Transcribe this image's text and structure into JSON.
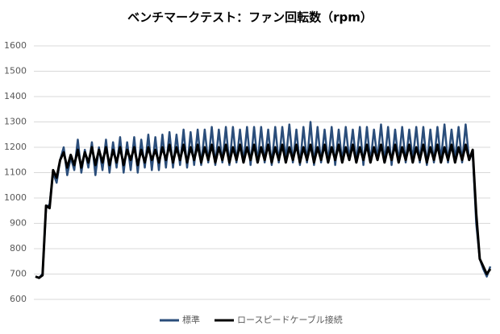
{
  "chart_data": {
    "type": "line",
    "title": "ベンチマークテスト：ファン回転数（rpm）",
    "categories": [
      null,
      null,
      null,
      null,
      null,
      null,
      null,
      null,
      null,
      null,
      null,
      null,
      null,
      null,
      null,
      null,
      null,
      null,
      null,
      null,
      null,
      null,
      null,
      null,
      null,
      null,
      null,
      null,
      null,
      null,
      null,
      null,
      null,
      null,
      null,
      null,
      null,
      null,
      null,
      null,
      null,
      null,
      null,
      null,
      null,
      null,
      null,
      null,
      null,
      null,
      null,
      null,
      null,
      null,
      null,
      null,
      null,
      null,
      null,
      null,
      null,
      null,
      null,
      null,
      null,
      null,
      null,
      null,
      null,
      null,
      null,
      null,
      null,
      null,
      null,
      null,
      null,
      null,
      null,
      null,
      null,
      null,
      null,
      null,
      null,
      null,
      null,
      null,
      null,
      null,
      null,
      null,
      null,
      null,
      null,
      null,
      null,
      null,
      null,
      null,
      null,
      null,
      null,
      null,
      null,
      null,
      null,
      null,
      null,
      null,
      null,
      null,
      null,
      null,
      null,
      null,
      null,
      null,
      null,
      null,
      null,
      null,
      null,
      null,
      null,
      null,
      null,
      null,
      null,
      null
    ],
    "series": [
      {
        "name": "標準",
        "color": "#2a4d7a",
        "values": [
          690,
          685,
          700,
          960,
          975,
          1100,
          1060,
          1150,
          1200,
          1090,
          1160,
          1110,
          1230,
          1100,
          1190,
          1120,
          1220,
          1090,
          1200,
          1110,
          1230,
          1100,
          1220,
          1120,
          1240,
          1100,
          1220,
          1110,
          1240,
          1100,
          1230,
          1120,
          1250,
          1110,
          1240,
          1110,
          1250,
          1120,
          1260,
          1120,
          1250,
          1130,
          1270,
          1120,
          1260,
          1130,
          1270,
          1130,
          1270,
          1140,
          1280,
          1130,
          1270,
          1140,
          1280,
          1130,
          1280,
          1140,
          1270,
          1140,
          1280,
          1130,
          1280,
          1140,
          1280,
          1140,
          1270,
          1130,
          1280,
          1140,
          1280,
          1150,
          1290,
          1140,
          1270,
          1130,
          1280,
          1140,
          1300,
          1130,
          1280,
          1140,
          1270,
          1140,
          1280,
          1130,
          1270,
          1140,
          1280,
          1150,
          1270,
          1140,
          1280,
          1130,
          1280,
          1140,
          1270,
          1150,
          1290,
          1140,
          1280,
          1130,
          1270,
          1140,
          1280,
          1140,
          1270,
          1150,
          1280,
          1140,
          1280,
          1130,
          1270,
          1140,
          1280,
          1150,
          1290,
          1140,
          1270,
          1150,
          1280,
          1140,
          1290,
          1150,
          1180,
          900,
          760,
          720,
          690,
          730
        ]
      },
      {
        "name": "ロースピードケーブル接続",
        "color": "#000000",
        "values": [
          690,
          685,
          695,
          970,
          960,
          1110,
          1080,
          1150,
          1180,
          1120,
          1170,
          1130,
          1190,
          1120,
          1180,
          1140,
          1200,
          1130,
          1190,
          1140,
          1200,
          1130,
          1190,
          1140,
          1200,
          1130,
          1190,
          1150,
          1200,
          1130,
          1190,
          1140,
          1200,
          1150,
          1190,
          1140,
          1200,
          1150,
          1210,
          1140,
          1200,
          1150,
          1210,
          1140,
          1200,
          1150,
          1210,
          1140,
          1200,
          1150,
          1210,
          1140,
          1200,
          1150,
          1210,
          1140,
          1200,
          1150,
          1210,
          1140,
          1200,
          1150,
          1210,
          1140,
          1200,
          1150,
          1210,
          1140,
          1200,
          1150,
          1210,
          1140,
          1200,
          1150,
          1210,
          1140,
          1200,
          1150,
          1210,
          1140,
          1200,
          1150,
          1210,
          1140,
          1200,
          1150,
          1210,
          1140,
          1200,
          1150,
          1210,
          1140,
          1200,
          1150,
          1210,
          1140,
          1200,
          1150,
          1210,
          1140,
          1200,
          1150,
          1210,
          1140,
          1200,
          1150,
          1210,
          1140,
          1200,
          1150,
          1210,
          1140,
          1200,
          1150,
          1210,
          1140,
          1200,
          1150,
          1210,
          1140,
          1200,
          1150,
          1210,
          1150,
          1190,
          940,
          760,
          730,
          700,
          720
        ]
      }
    ],
    "ylim": [
      600,
      1600
    ],
    "yticks": [
      600,
      700,
      800,
      900,
      1000,
      1100,
      1200,
      1300,
      1400,
      1500,
      1600
    ],
    "grid": true,
    "legend": "bottom"
  }
}
